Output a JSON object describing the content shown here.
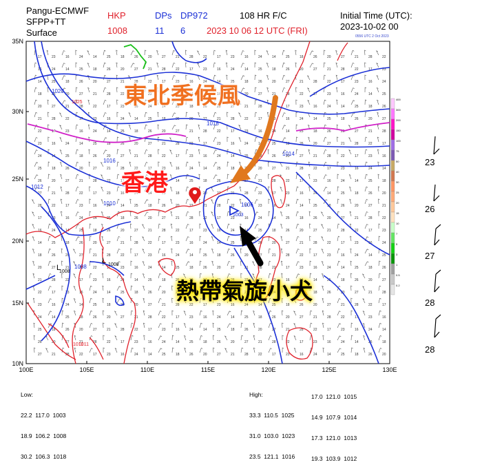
{
  "header": {
    "model": "Pangu-ECMWF",
    "product": "SFPP+TT",
    "level": "Surface",
    "station_label": "HKP",
    "station_value": "1008",
    "dps_label": "DPs",
    "dps_value": "11",
    "dp_label": "DP972",
    "dp_value": "6",
    "forecast": "108 HR F/C",
    "valid_time": "2023 10 06   12 UTC (FRI)",
    "init_label": "Initial Time (UTC):",
    "init_time": "2023-10-02  00",
    "stamp": "0556 UTC  2 Oct 2023"
  },
  "annotations": {
    "monsoon": "東北季候風",
    "hong_kong": "香港",
    "typhoon": "熱帶氣旋小犬"
  },
  "axes": {
    "lat_labels": [
      "35N",
      "30N",
      "25N",
      "20N",
      "15N",
      "10N"
    ],
    "lon_labels": [
      "100E",
      "105E",
      "110E",
      "115E",
      "120E",
      "125E",
      "130E"
    ]
  },
  "low_stats": {
    "title": "Low:",
    "rows": [
      "22.2  117.0  1003",
      "18.9  106.2  1008",
      "30.2  106.3  1018"
    ]
  },
  "high_stats": {
    "title": "High:",
    "rows": [
      "33.3  110.5  1025",
      "31.0  103.0  1023",
      "23.5  121.1  1016"
    ],
    "rows2": [
      "17.0  121.0  1015",
      "14.9  107.9  1014",
      "17.3  121.0  1013",
      "19.3  103.9  1012"
    ]
  },
  "colorbar_labels": [
    "400",
    "300",
    "200",
    "150",
    "100",
    "75",
    "50",
    "40",
    "30",
    "25",
    "20",
    "15",
    "10",
    "7",
    "5",
    "3",
    "1",
    "0.5",
    "0.2"
  ],
  "station_values": [
    "23",
    "26",
    "27",
    "28",
    "28"
  ],
  "map_labels": {
    "isobars": [
      "1020",
      "1018",
      "1016",
      "1014",
      "1012",
      "1010",
      "1008",
      "1006"
    ],
    "low_center": "1003",
    "lows": [
      "L",
      "L"
    ],
    "low_values": [
      "1008",
      "1008"
    ],
    "high_values": [
      "1025",
      "1011",
      "1011"
    ]
  },
  "colors": {
    "isobar": "#1a2fd6",
    "coast": "#e0202a",
    "magenta": "#d020c8",
    "green": "#18c018",
    "monsoon_arrow": "#e0781e",
    "marker": "#e01a1a"
  }
}
